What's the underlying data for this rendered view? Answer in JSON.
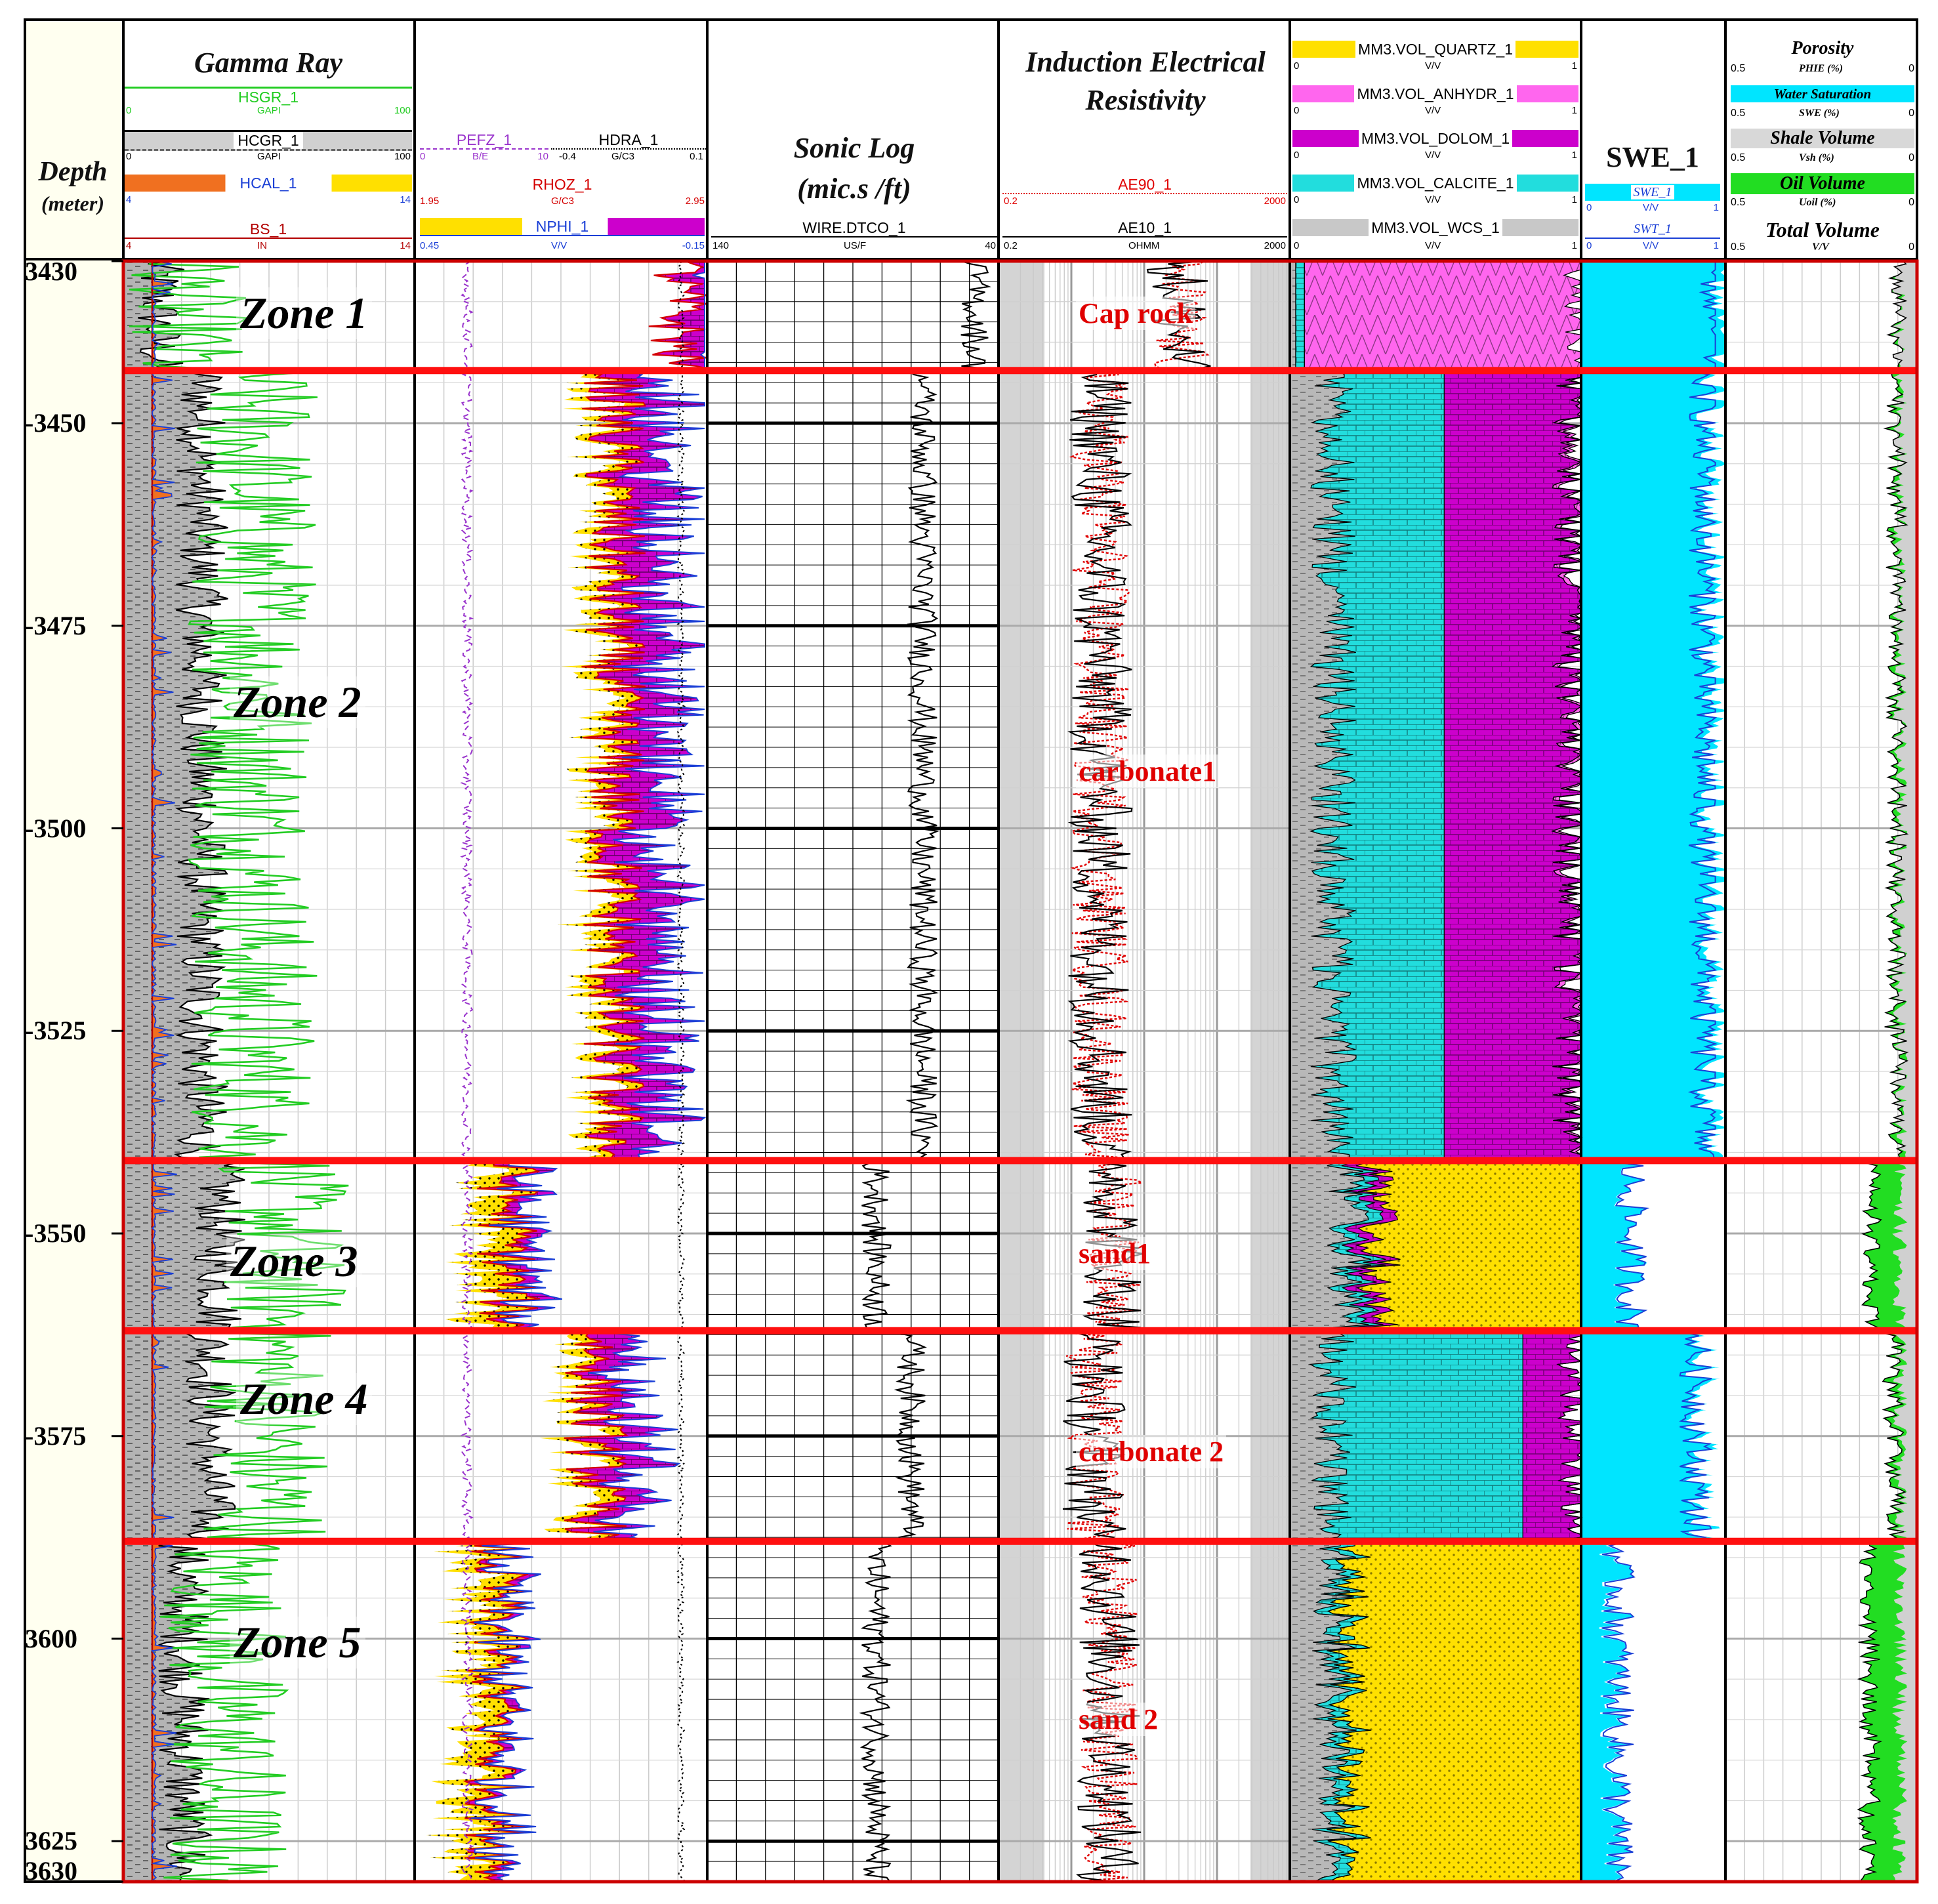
{
  "header": {
    "depth_title": "Depth",
    "depth_unit": "(meter)",
    "track1_title": "Gamma Ray",
    "track3_title": "Sonic Log",
    "track3_subtitle": "(mic.s /ft)",
    "track4_title": "Induction Electrical Resistivity",
    "track6_title": "SWE_1"
  },
  "curves": {
    "hsgr": {
      "name": "HSGR_1",
      "unit": "GAPI",
      "min": "0",
      "max": "100",
      "color": "#22cc22"
    },
    "hcgr": {
      "name": "HCGR_1",
      "unit": "GAPI",
      "min": "0",
      "max": "100",
      "color": "#000000"
    },
    "hcal": {
      "name": "HCAL_1",
      "unit": "IN",
      "min": "4",
      "max": "14",
      "color": "#1a3fd6"
    },
    "bs": {
      "name": "BS_1",
      "unit": "IN",
      "min": "4",
      "max": "14",
      "color": "#b30000"
    },
    "pefz": {
      "name": "PEFZ_1",
      "unit": "B/E",
      "min": "0",
      "max": "10",
      "color": "#9933cc"
    },
    "hdra": {
      "name": "HDRA_1",
      "unit": "G/C3",
      "min": "-0.4",
      "max": "0.1",
      "color": "#000000"
    },
    "rhoz": {
      "name": "RHOZ_1",
      "unit": "G/C3",
      "min": "1.95",
      "max": "2.95",
      "color": "#d40000"
    },
    "nphi": {
      "name": "NPHI_1",
      "unit": "V/V",
      "min": "0.45",
      "max": "-0.15",
      "color": "#1a3fd6"
    },
    "dtco": {
      "name": "WIRE.DTCO_1",
      "unit": "US/F",
      "min": "140",
      "max": "40",
      "color": "#000000"
    },
    "ae90": {
      "name": "AE90_1",
      "unit": "",
      "min": "0.2",
      "max": "2000",
      "color": "#e00000"
    },
    "ae10": {
      "name": "AE10_1",
      "unit": "OHMM",
      "min": "0.2",
      "max": "2000",
      "color": "#000000"
    },
    "quartz": {
      "name": "MM3.VOL_QUARTZ_1",
      "unit": "V/V",
      "min": "0",
      "max": "1",
      "color": "#ffe000"
    },
    "anhydr": {
      "name": "MM3.VOL_ANHYDR_1",
      "unit": "V/V",
      "min": "0",
      "max": "1",
      "color": "#ff66ee"
    },
    "dolom": {
      "name": "MM3.VOL_DOLOM_1",
      "unit": "V/V",
      "min": "0",
      "max": "1",
      "color": "#cc00cc"
    },
    "calcite": {
      "name": "MM3.VOL_CALCITE_1",
      "unit": "V/V",
      "min": "0",
      "max": "1",
      "color": "#22dddd"
    },
    "wcs": {
      "name": "MM3.VOL_WCS_1",
      "unit": "V/V",
      "min": "0",
      "max": "1",
      "color": "#a8a8a8"
    },
    "swe": {
      "name": "SWE_1",
      "unit": "V/V",
      "min": "0",
      "max": "1",
      "color": "#00e5ff"
    },
    "swt": {
      "name": "SWT_1",
      "unit": "V/V",
      "min": "0",
      "max": "1",
      "color": "#1a3fd6"
    }
  },
  "volume_track": {
    "porosity": {
      "title": "Porosity",
      "sub": "PHIE (%)",
      "min": "0.5",
      "max": "0"
    },
    "water": {
      "title": "Water Saturation",
      "sub": "SWE (%)",
      "min": "0.5",
      "max": "0"
    },
    "shale": {
      "title": "Shale Volume",
      "sub": "Vsh (%)",
      "min": "0.5",
      "max": "0"
    },
    "oil": {
      "title": "Oil Volume",
      "sub": "Uoil (%)",
      "min": "0.5",
      "max": "0"
    },
    "total": {
      "title": "Total Volume",
      "sub": "V/V",
      "min": "0.5",
      "max": "0"
    }
  },
  "chart_data": {
    "type": "well-log",
    "depth_range": [
      3430,
      3630
    ],
    "depth_ticks": [
      3430,
      3450,
      3475,
      3500,
      3525,
      3550,
      3575,
      3600,
      3625,
      3630
    ],
    "depth_tick_labels": [
      "3430",
      "-3450",
      "-3475",
      "-3500",
      "-3525",
      "-3550",
      "-3575",
      "3600",
      "3625",
      "3630"
    ],
    "zone_boundaries": [
      3443.5,
      3541,
      3562,
      3588
    ],
    "zones": [
      {
        "label": "Zone 1",
        "label_depth": 3436
      },
      {
        "label": "Zone 2",
        "label_depth": 3484
      },
      {
        "label": "Zone 3",
        "label_depth": 3553
      },
      {
        "label": "Zone 4",
        "label_depth": 3570
      },
      {
        "label": "Zone 5",
        "label_depth": 3600
      }
    ],
    "lithology_labels": [
      {
        "label": "Cap rock",
        "depth": 3436.5
      },
      {
        "label": "carbonate1",
        "depth": 3493
      },
      {
        "label": "sand1",
        "depth": 3552.5
      },
      {
        "label": "carbonate 2",
        "depth": 3577
      },
      {
        "label": "sand 2",
        "depth": 3610
      }
    ],
    "lithology_by_zone": [
      {
        "zone": "Zone 1",
        "anhydrite": 0.95,
        "calcite": 0.03,
        "dolomite": 0.0,
        "quartz": 0.0,
        "shale": 0.02
      },
      {
        "zone": "Zone 2",
        "anhydrite": 0.02,
        "calcite": 0.38,
        "dolomite": 0.45,
        "quartz": 0.0,
        "shale": 0.15
      },
      {
        "zone": "Zone 3",
        "anhydrite": 0.0,
        "calcite": 0.05,
        "dolomite": 0.05,
        "quartz": 0.7,
        "shale": 0.2
      },
      {
        "zone": "Zone 4",
        "anhydrite": 0.0,
        "calcite": 0.65,
        "dolomite": 0.2,
        "quartz": 0.0,
        "shale": 0.15
      },
      {
        "zone": "Zone 5",
        "anhydrite": 0.0,
        "calcite": 0.05,
        "dolomite": 0.0,
        "quartz": 0.8,
        "shale": 0.15
      }
    ],
    "gamma_ray_by_zone": [
      20,
      45,
      55,
      50,
      35
    ],
    "swe_by_zone": [
      1.0,
      0.92,
      0.35,
      0.85,
      0.25
    ]
  }
}
